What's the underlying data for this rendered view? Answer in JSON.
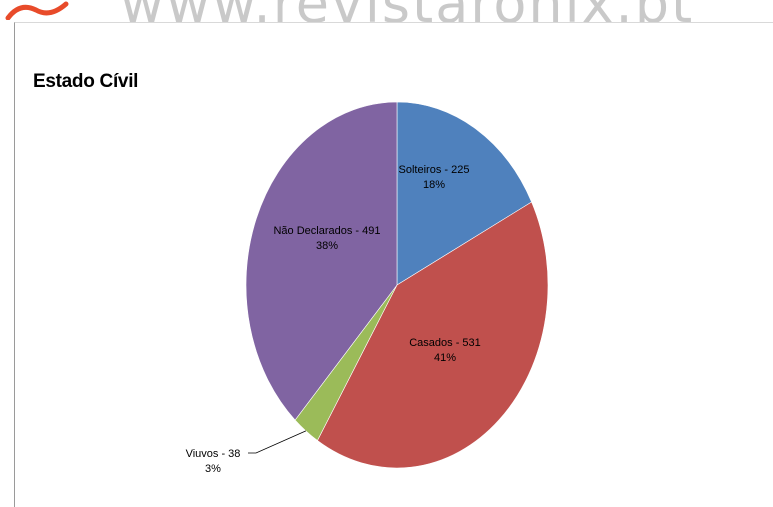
{
  "page": {
    "watermark": "www.revistaronix.pt"
  },
  "colors": {
    "solteiros": "#4F81BD",
    "casados": "#C0504D",
    "viuvos": "#9BBB59",
    "nao_declarados": "#8064A2",
    "watermark_logo": "#e84b2a"
  },
  "chart_data": {
    "type": "pie",
    "title": "Estado Cívil",
    "start_angle_deg": 0,
    "direction": "clockwise",
    "legend": "none",
    "slices": [
      {
        "key": "solteiros",
        "name": "Solteiros",
        "value": 225,
        "percent": "18%",
        "label": "Solteiros - 225",
        "percent_label": "18%"
      },
      {
        "key": "casados",
        "name": "Casados",
        "value": 531,
        "percent": "41%",
        "label": "Casados - 531",
        "percent_label": "41%"
      },
      {
        "key": "viuvos",
        "name": "Viuvos",
        "value": 38,
        "percent": "3%",
        "label": "Viuvos - 38",
        "percent_label": "3%"
      },
      {
        "key": "nao_declarados",
        "name": "Não Declarados",
        "value": 491,
        "percent": "38%",
        "label": "Não Declarados - 491",
        "percent_label": "38%"
      }
    ]
  }
}
